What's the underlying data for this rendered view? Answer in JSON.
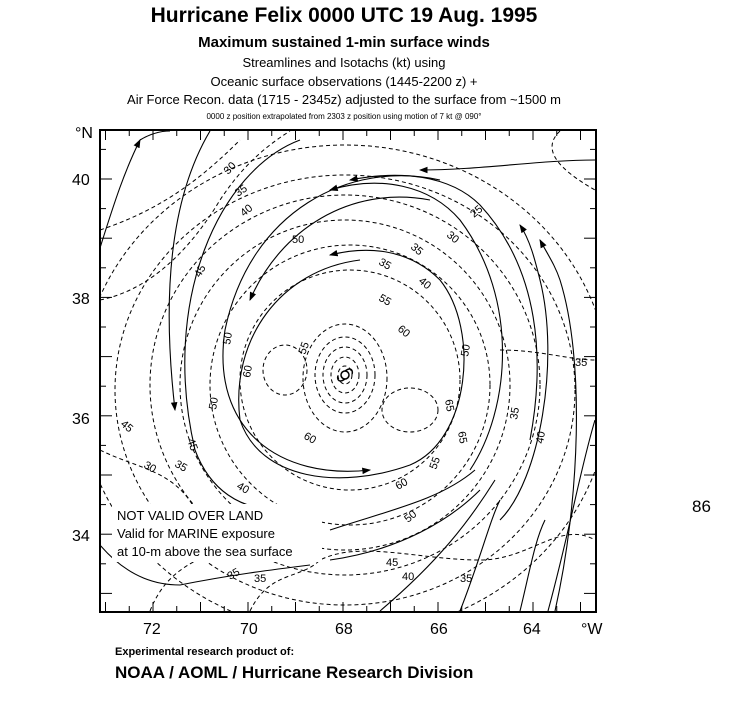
{
  "header": {
    "title": "Hurricane Felix   0000 UTC  19 Aug. 1995",
    "subtitle": "Maximum sustained 1-min surface winds",
    "line2": "Streamlines and Isotachs (kt) using",
    "line3": "Oceanic surface observations (1445-2200 z) +",
    "line4": "Air Force Recon. data (1715 - 2345z) adjusted to the surface from ~1500 m",
    "line5": "0000 z position extrapolated from 2303 z position using motion of 7 kt @ 090°"
  },
  "map": {
    "lat_unit": "°N",
    "lon_unit": "°W",
    "lat_ticks": [
      "40",
      "38",
      "36",
      "34"
    ],
    "lon_ticks": [
      "72",
      "70",
      "68",
      "66",
      "64"
    ],
    "storm_center": {
      "lat": 36.7,
      "lon": 67.9
    },
    "notes": [
      "NOT VALID OVER LAND",
      "Valid for MARINE exposure",
      "at 10-m above the sea surface"
    ],
    "isotach_labels": [
      "30",
      "35",
      "40",
      "50",
      "45",
      "35",
      "40",
      "55",
      "60",
      "35",
      "30",
      "25",
      "55",
      "60",
      "50",
      "50",
      "45",
      "60",
      "65",
      "60",
      "55",
      "45",
      "35",
      "30",
      "50",
      "40",
      "35",
      "45",
      "40",
      "35",
      "35",
      "40",
      "35",
      "50",
      "65",
      "35"
    ]
  },
  "side_label": "86",
  "footer": {
    "credit_line": "Experimental research product of:",
    "organization": "NOAA / AOML / Hurricane Research Division"
  }
}
